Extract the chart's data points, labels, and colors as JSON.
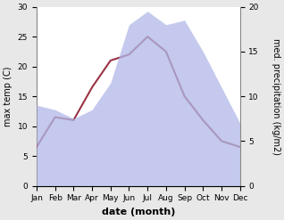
{
  "months": [
    "Jan",
    "Feb",
    "Mar",
    "Apr",
    "May",
    "Jun",
    "Jul",
    "Aug",
    "Sep",
    "Oct",
    "Nov",
    "Dec"
  ],
  "max_temp": [
    6.5,
    11.5,
    11.0,
    16.5,
    21.0,
    22.0,
    25.0,
    22.5,
    15.0,
    11.0,
    7.5,
    6.5
  ],
  "precipitation": [
    9.0,
    8.5,
    7.5,
    8.5,
    11.5,
    18.0,
    19.5,
    18.0,
    18.5,
    15.0,
    11.0,
    7.0
  ],
  "temp_color": "#993344",
  "precip_fill_color": "#b0b8e8",
  "precip_fill_alpha": 0.75,
  "temp_ylim": [
    0,
    30
  ],
  "precip_ylim": [
    0,
    20
  ],
  "temp_yticks": [
    0,
    5,
    10,
    15,
    20,
    25,
    30
  ],
  "precip_yticks": [
    0,
    5,
    10,
    15,
    20
  ],
  "xlabel": "date (month)",
  "ylabel_left": "max temp (C)",
  "ylabel_right": "med. precipitation (kg/m2)",
  "bg_color": "#e8e8e8",
  "plot_bg_color": "#ffffff",
  "line_width": 1.5,
  "label_fontsize": 7,
  "tick_fontsize": 6.5,
  "xlabel_fontsize": 8
}
